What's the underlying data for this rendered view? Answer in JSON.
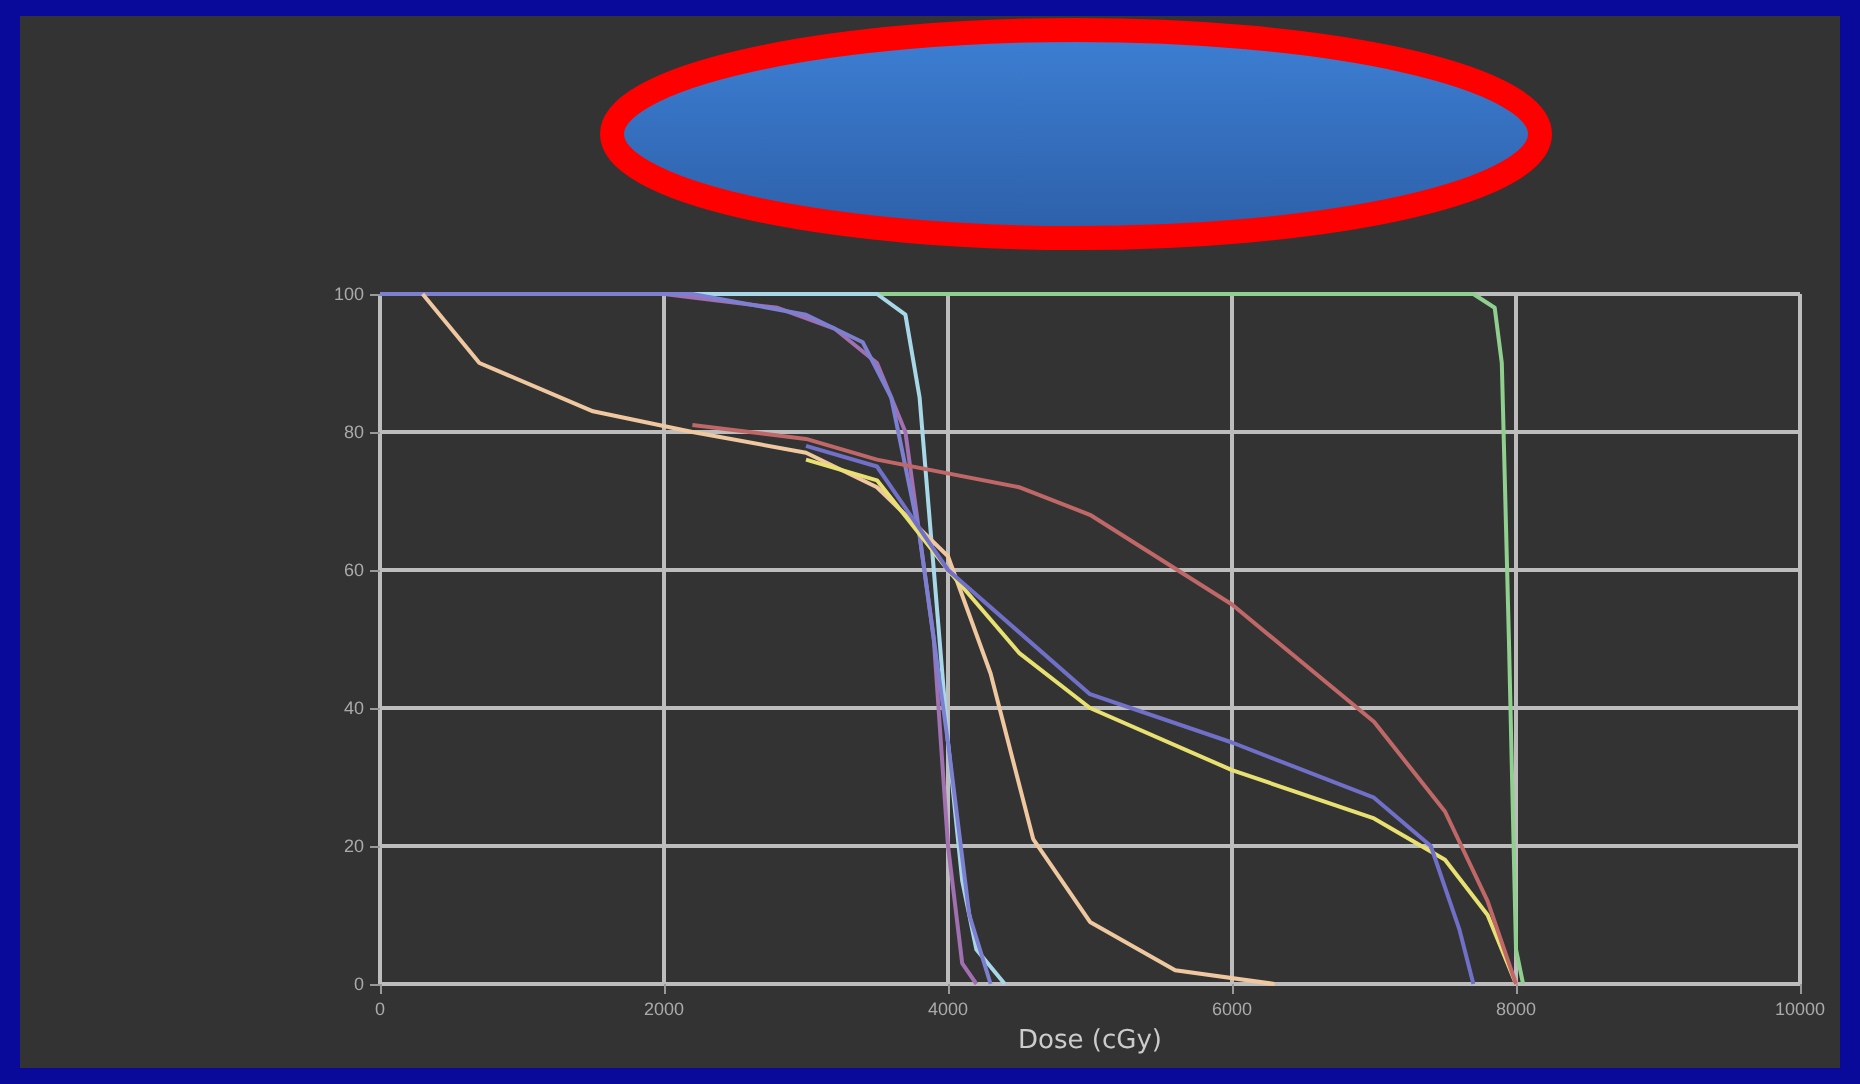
{
  "chart_data": {
    "type": "line",
    "xlabel": "Dose (cGy)",
    "xlim": [
      0,
      10000
    ],
    "xticks": [
      0,
      2000,
      4000,
      6000,
      8000,
      10000
    ],
    "ylim": [
      0,
      100
    ],
    "yticks": [
      0,
      20,
      40,
      60,
      80,
      100
    ],
    "grid": true,
    "marker": "none",
    "line_style": "solid",
    "series": [
      {
        "color": "#8fd08f",
        "x": [
          0,
          7700,
          7850,
          7900,
          7950,
          8000,
          8050
        ],
        "values": [
          100,
          100,
          98,
          90,
          50,
          5,
          0
        ]
      },
      {
        "color": "#a8d8e8",
        "x": [
          0,
          3500,
          3700,
          3800,
          3900,
          4000,
          4100,
          4200,
          4400
        ],
        "values": [
          100,
          100,
          97,
          85,
          60,
          35,
          15,
          5,
          0
        ]
      },
      {
        "color": "#a070b0",
        "x": [
          0,
          2000,
          2800,
          3200,
          3500,
          3700,
          3900,
          4000,
          4100,
          4200
        ],
        "values": [
          100,
          100,
          98,
          95,
          90,
          80,
          50,
          20,
          3,
          0
        ]
      },
      {
        "color": "#7d80d0",
        "x": [
          0,
          2200,
          3000,
          3400,
          3600,
          3800,
          4000,
          4150,
          4300
        ],
        "values": [
          100,
          100,
          97,
          93,
          85,
          65,
          35,
          10,
          0
        ]
      },
      {
        "color": "#f0c8a0",
        "x": [
          300,
          700,
          1500,
          2200,
          3000,
          3500,
          4000,
          4300,
          4600,
          5000,
          5600,
          6300
        ],
        "values": [
          100,
          90,
          83,
          80,
          77,
          72,
          62,
          45,
          21,
          9,
          2,
          0
        ]
      },
      {
        "color": "#e8e070",
        "x": [
          3000,
          3500,
          4000,
          4500,
          5000,
          6000,
          7000,
          7500,
          7800,
          8000
        ],
        "values": [
          76,
          73,
          60,
          48,
          40,
          31,
          24,
          18,
          10,
          0
        ]
      },
      {
        "color": "#7070c8",
        "x": [
          3000,
          3500,
          4000,
          5000,
          6000,
          7000,
          7400,
          7600,
          7700
        ],
        "values": [
          78,
          75,
          60,
          42,
          35,
          27,
          20,
          8,
          0
        ]
      },
      {
        "color": "#c06868",
        "x": [
          2200,
          3000,
          3500,
          4500,
          5000,
          6000,
          7000,
          7500,
          7800,
          8000
        ],
        "values": [
          81,
          79,
          76,
          72,
          68,
          55,
          38,
          25,
          12,
          0
        ]
      }
    ]
  }
}
